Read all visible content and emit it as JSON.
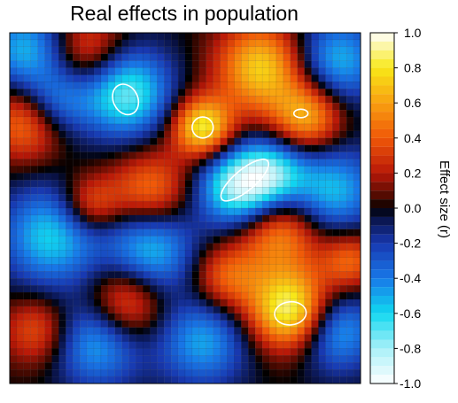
{
  "chart_data": {
    "type": "heatmap",
    "title": "Real effects in population",
    "colorbar": {
      "label": "Effect size (r)",
      "range": [
        -1.0,
        1.0
      ],
      "ticks": [
        "1.0",
        "0.8",
        "0.6",
        "0.4",
        "0.2",
        "0.0",
        "-0.2",
        "-0.4",
        "-0.6",
        "-0.8",
        "-1.0"
      ],
      "stops": [
        {
          "v": -1.0,
          "color": "#ffffff"
        },
        {
          "v": -0.8,
          "color": "#a8f0f8"
        },
        {
          "v": -0.6,
          "color": "#10d8f0"
        },
        {
          "v": -0.4,
          "color": "#1878e8"
        },
        {
          "v": -0.2,
          "color": "#1838b0"
        },
        {
          "v": -0.05,
          "color": "#081040"
        },
        {
          "v": 0.0,
          "color": "#000000"
        },
        {
          "v": 0.05,
          "color": "#400800"
        },
        {
          "v": 0.2,
          "color": "#b81808"
        },
        {
          "v": 0.4,
          "color": "#f05808"
        },
        {
          "v": 0.6,
          "color": "#f8a010"
        },
        {
          "v": 0.8,
          "color": "#f8e818"
        },
        {
          "v": 1.0,
          "color": "#ffffff"
        }
      ]
    },
    "grid": {
      "rows": 50,
      "cols": 50
    },
    "x_range": [
      0,
      1
    ],
    "y_range": [
      0,
      1
    ],
    "field_components": [
      {
        "x": 0.33,
        "y": 0.17,
        "amp": -0.75,
        "s": 0.09
      },
      {
        "x": 0.05,
        "y": 0.05,
        "amp": -0.55,
        "s": 0.09
      },
      {
        "x": 0.13,
        "y": 0.2,
        "amp": -0.45,
        "s": 0.07
      },
      {
        "x": 0.93,
        "y": 0.08,
        "amp": -0.55,
        "s": 0.09
      },
      {
        "x": 0.12,
        "y": 0.58,
        "amp": -0.6,
        "s": 0.1
      },
      {
        "x": 0.4,
        "y": 0.62,
        "amp": -0.6,
        "s": 0.09
      },
      {
        "x": 0.65,
        "y": 0.44,
        "amp": -0.8,
        "s": 0.08
      },
      {
        "x": 0.75,
        "y": 0.4,
        "amp": -0.55,
        "s": 0.07
      },
      {
        "x": 0.92,
        "y": 0.45,
        "amp": -0.55,
        "s": 0.09
      },
      {
        "x": 0.25,
        "y": 0.88,
        "amp": -0.55,
        "s": 0.09
      },
      {
        "x": 0.55,
        "y": 0.88,
        "amp": -0.5,
        "s": 0.09
      },
      {
        "x": 0.93,
        "y": 0.85,
        "amp": -0.55,
        "s": 0.08
      },
      {
        "x": 0.05,
        "y": 0.25,
        "amp": 0.55,
        "s": 0.08
      },
      {
        "x": 0.22,
        "y": 0.05,
        "amp": 0.45,
        "s": 0.08
      },
      {
        "x": 0.55,
        "y": 0.27,
        "amp": 0.85,
        "s": 0.06
      },
      {
        "x": 0.72,
        "y": 0.1,
        "amp": 0.75,
        "s": 0.09
      },
      {
        "x": 0.85,
        "y": 0.24,
        "amp": 0.65,
        "s": 0.07
      },
      {
        "x": 0.4,
        "y": 0.45,
        "amp": 0.5,
        "s": 0.08
      },
      {
        "x": 0.23,
        "y": 0.49,
        "amp": 0.45,
        "s": 0.06
      },
      {
        "x": 0.77,
        "y": 0.57,
        "amp": 0.55,
        "s": 0.08
      },
      {
        "x": 0.8,
        "y": 0.79,
        "amp": 0.95,
        "s": 0.08
      },
      {
        "x": 0.33,
        "y": 0.77,
        "amp": 0.55,
        "s": 0.08
      },
      {
        "x": 0.62,
        "y": 0.7,
        "amp": 0.45,
        "s": 0.07
      },
      {
        "x": 0.08,
        "y": 0.85,
        "amp": 0.4,
        "s": 0.07
      },
      {
        "x": 0.97,
        "y": 0.65,
        "amp": 0.45,
        "s": 0.06
      }
    ],
    "contour_level": 0.8,
    "contours": [
      {
        "cx": 0.33,
        "cy": 0.19,
        "rx": 0.035,
        "ry": 0.045,
        "rot": -25
      },
      {
        "cx": 0.55,
        "cy": 0.27,
        "rx": 0.03,
        "ry": 0.03,
        "rot": 0
      },
      {
        "cx": 0.67,
        "cy": 0.42,
        "rx": 0.085,
        "ry": 0.03,
        "rot": -40
      },
      {
        "cx": 0.83,
        "cy": 0.23,
        "rx": 0.02,
        "ry": 0.012,
        "rot": 0
      },
      {
        "cx": 0.8,
        "cy": 0.8,
        "rx": 0.045,
        "ry": 0.033,
        "rot": -5
      }
    ]
  }
}
